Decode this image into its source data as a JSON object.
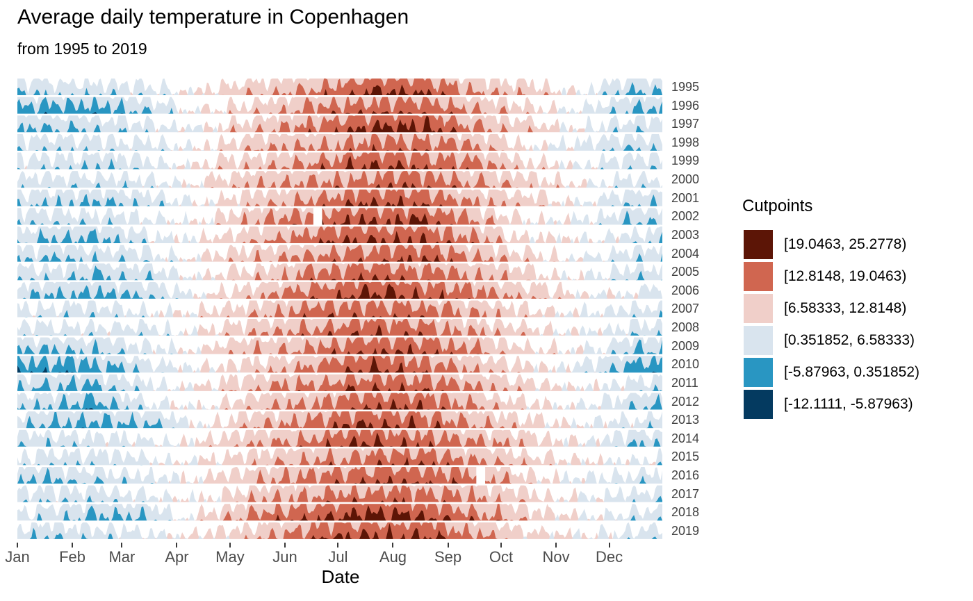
{
  "page": {
    "background": "#ffffff"
  },
  "chart_data": {
    "type": "horizon",
    "title": "Average daily temperature in Copenhagen",
    "subtitle": "from 1995 to 2019",
    "xlabel": "Date",
    "x_ticks": [
      "Jan",
      "Feb",
      "Mar",
      "Apr",
      "May",
      "Jun",
      "Jul",
      "Aug",
      "Sep",
      "Oct",
      "Nov",
      "Dec"
    ],
    "grid": "off",
    "legend": {
      "title": "Cutpoints",
      "position": "right",
      "entries": [
        {
          "label": "[19.0463, 25.2778)",
          "color": "#5C1506"
        },
        {
          "label": "[12.8148, 19.0463)",
          "color": "#D06650"
        },
        {
          "label": "[6.58333, 12.8148)",
          "color": "#F0CFC9"
        },
        {
          "label": "[0.351852, 6.58333)",
          "color": "#D9E4EE"
        },
        {
          "label": "[-5.87963, 0.351852)",
          "color": "#2996C2"
        },
        {
          "label": "[-12.1111, -5.87963)",
          "color": "#043A60"
        }
      ]
    },
    "cutpoints": [
      -12.1111,
      -5.87963,
      0.351852,
      6.58333,
      12.8148,
      19.0463,
      25.2778
    ],
    "origin": 6.58333,
    "band_width": 6.23148,
    "x_range_days": 365,
    "years": [
      {
        "year": 1995,
        "monthly": [
          1.4,
          2.3,
          3.4,
          7.7,
          12.2,
          14.4,
          19.6,
          19.8,
          14.1,
          11.1,
          5.7,
          -1.5
        ]
      },
      {
        "year": 1996,
        "monthly": [
          -2.6,
          -2.7,
          0.9,
          7.7,
          10.7,
          15.4,
          17.1,
          18.3,
          13.6,
          9.6,
          4.7,
          -0.5
        ]
      },
      {
        "year": 1997,
        "monthly": [
          -1.6,
          1.3,
          3.4,
          6.7,
          11.7,
          15.9,
          19.1,
          21.3,
          14.6,
          10.1,
          5.2,
          2.0
        ]
      },
      {
        "year": 1998,
        "monthly": [
          1.9,
          2.3,
          2.9,
          7.2,
          12.7,
          14.4,
          16.6,
          16.8,
          14.1,
          8.1,
          3.7,
          1.0
        ]
      },
      {
        "year": 1999,
        "monthly": [
          2.4,
          0.3,
          3.4,
          8.7,
          12.2,
          14.9,
          19.6,
          18.3,
          16.1,
          9.6,
          6.2,
          1.5
        ]
      },
      {
        "year": 2000,
        "monthly": [
          2.4,
          2.3,
          3.4,
          8.7,
          13.7,
          14.9,
          16.6,
          18.3,
          14.1,
          11.1,
          6.7,
          3.0
        ]
      },
      {
        "year": 2001,
        "monthly": [
          0.4,
          -0.2,
          1.4,
          7.2,
          12.2,
          14.9,
          19.6,
          18.8,
          13.6,
          11.1,
          5.7,
          1.0
        ]
      },
      {
        "year": 2002,
        "monthly": [
          1.9,
          2.3,
          4.4,
          7.7,
          13.7,
          16.9,
          19.6,
          20.3,
          14.6,
          8.1,
          5.2,
          -0.5
        ]
      },
      {
        "year": 2003,
        "monthly": [
          -0.6,
          -1.7,
          3.4,
          7.7,
          12.7,
          16.9,
          19.6,
          19.3,
          14.6,
          8.6,
          6.2,
          2.5
        ]
      },
      {
        "year": 2004,
        "monthly": [
          -0.6,
          1.3,
          3.4,
          8.2,
          12.2,
          14.9,
          17.6,
          18.8,
          14.6,
          10.1,
          5.2,
          2.5
        ]
      },
      {
        "year": 2005,
        "monthly": [
          2.4,
          -0.7,
          1.4,
          7.7,
          11.7,
          15.4,
          19.1,
          17.3,
          14.6,
          10.1,
          6.2,
          2.0
        ]
      },
      {
        "year": 2006,
        "monthly": [
          -1.1,
          -1.7,
          0.4,
          6.7,
          12.2,
          16.9,
          21.6,
          18.3,
          16.6,
          12.1,
          7.2,
          4.5
        ]
      },
      {
        "year": 2007,
        "monthly": [
          3.4,
          1.8,
          5.4,
          8.7,
          12.7,
          16.9,
          17.6,
          17.3,
          13.6,
          9.6,
          5.7,
          2.5
        ]
      },
      {
        "year": 2008,
        "monthly": [
          2.9,
          3.3,
          3.4,
          7.7,
          12.7,
          15.9,
          18.6,
          17.3,
          13.6,
          9.6,
          5.7,
          2.5
        ]
      },
      {
        "year": 2009,
        "monthly": [
          -0.6,
          0.3,
          3.4,
          8.7,
          12.7,
          14.9,
          18.6,
          18.8,
          14.6,
          8.6,
          6.7,
          -1.0
        ]
      },
      {
        "year": 2010,
        "monthly": [
          -3.6,
          -2.7,
          1.9,
          7.7,
          10.7,
          15.4,
          20.6,
          17.3,
          13.1,
          9.1,
          3.7,
          -3.5
        ]
      },
      {
        "year": 2011,
        "monthly": [
          -1.6,
          -1.7,
          3.4,
          8.7,
          12.2,
          15.9,
          18.1,
          18.3,
          14.6,
          9.6,
          6.7,
          3.5
        ]
      },
      {
        "year": 2012,
        "monthly": [
          0.4,
          -3.2,
          4.4,
          6.7,
          12.7,
          14.9,
          18.6,
          18.8,
          14.1,
          9.1,
          5.7,
          0.5
        ]
      },
      {
        "year": 2013,
        "monthly": [
          -1.1,
          -1.7,
          -1.1,
          7.2,
          12.7,
          15.9,
          19.6,
          18.3,
          14.6,
          10.6,
          5.7,
          3.5
        ]
      },
      {
        "year": 2014,
        "monthly": [
          1.4,
          2.3,
          4.4,
          8.7,
          12.7,
          15.9,
          20.6,
          17.3,
          14.6,
          11.1,
          6.7,
          0.5
        ]
      },
      {
        "year": 2015,
        "monthly": [
          2.4,
          1.3,
          4.4,
          7.7,
          11.7,
          14.4,
          16.6,
          18.3,
          14.1,
          10.1,
          7.2,
          5.5
        ]
      },
      {
        "year": 2016,
        "monthly": [
          -1.1,
          1.3,
          3.4,
          7.7,
          13.2,
          15.9,
          18.6,
          18.3,
          16.6,
          9.6,
          4.7,
          3.5
        ]
      },
      {
        "year": 2017,
        "monthly": [
          1.4,
          1.3,
          4.4,
          7.2,
          12.7,
          14.9,
          17.1,
          17.3,
          14.1,
          11.1,
          5.7,
          3.0
        ]
      },
      {
        "year": 2018,
        "monthly": [
          2.4,
          -2.2,
          0.4,
          8.7,
          15.7,
          17.9,
          21.6,
          20.3,
          15.6,
          11.1,
          6.7,
          3.5
        ]
      },
      {
        "year": 2019,
        "monthly": [
          0.4,
          2.3,
          4.4,
          8.7,
          11.7,
          17.4,
          19.6,
          19.8,
          14.6,
          10.1,
          6.7,
          3.5
        ]
      }
    ],
    "missing_spans": [
      {
        "year": 2002,
        "start_day": 169,
        "end_day": 172
      },
      {
        "year": 2016,
        "start_day": 261,
        "end_day": 264
      }
    ]
  }
}
